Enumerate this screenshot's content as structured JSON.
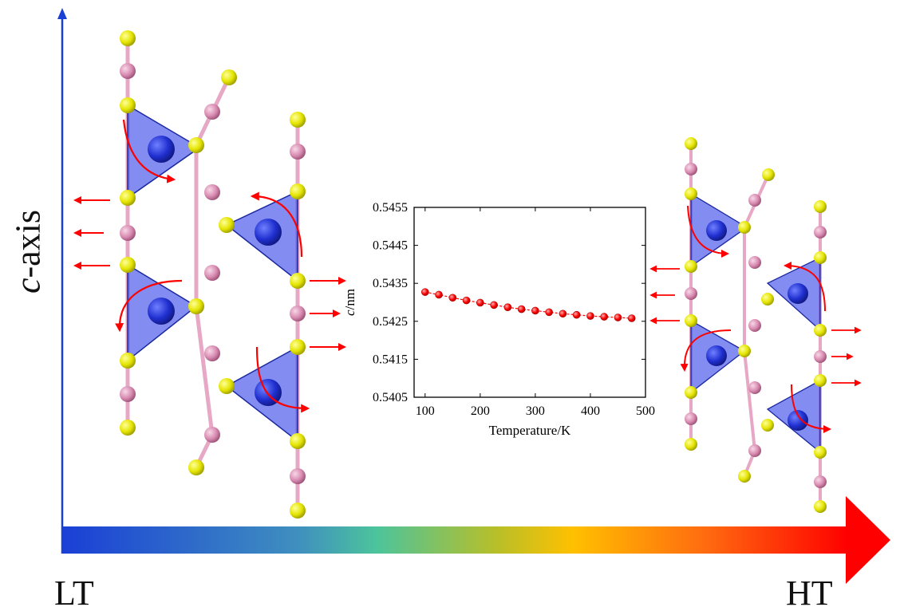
{
  "labels": {
    "vertical_axis_italic": "c",
    "vertical_axis_rest": "-axis",
    "low_temp": "LT",
    "high_temp": "HT"
  },
  "colors": {
    "gradient": [
      "#1a3fd6",
      "#3f8fbf",
      "#4cc49c",
      "#b6bf2a",
      "#ffc000",
      "#ff6a10",
      "#ff0000"
    ],
    "tetrahedron": "#3040e8",
    "sulfur_atom": "#e4e400",
    "metal_atom": "#d88ab0",
    "arrow": "#ff0000",
    "chart_point": "#ff0000"
  },
  "chart_data": {
    "type": "line",
    "x": [
      100,
      125,
      150,
      175,
      200,
      225,
      250,
      275,
      300,
      325,
      350,
      375,
      400,
      425,
      450,
      475
    ],
    "series": [
      {
        "values": [
          0.54327,
          0.5432,
          0.54312,
          0.54305,
          0.54299,
          0.54293,
          0.54287,
          0.54282,
          0.54278,
          0.54274,
          0.5427,
          0.54267,
          0.54264,
          0.54262,
          0.5426,
          0.54258
        ]
      }
    ],
    "xlabel": "Temperature/K",
    "ylabel_italic": "c",
    "ylabel_rest": "/nm",
    "xlim": [
      80,
      500
    ],
    "ylim": [
      0.5405,
      0.5455
    ],
    "xticks": [
      "100",
      "200",
      "300",
      "400",
      "500"
    ],
    "yticks": [
      "0.5405",
      "0.5415",
      "0.5425",
      "0.5435",
      "0.5445",
      "0.5455"
    ],
    "grid": false
  }
}
